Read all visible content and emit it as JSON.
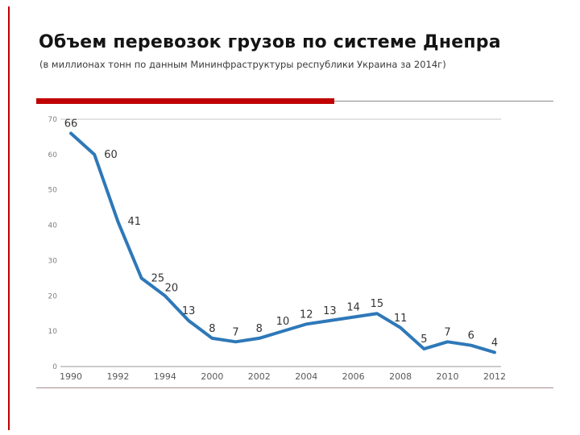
{
  "slide": {
    "title": "Объем перевозок грузов по системе Днепра",
    "subtitle": "(в миллионах тонн по данным Мининфраструктуры республики Украина за 2014г)"
  },
  "colors": {
    "accent": "#c00000",
    "thin_rule": "#8a8a8a",
    "grid": "#c4c4c4",
    "axis": "#9a9a9a",
    "y_tick_text": "#7f7f7f",
    "x_tick_text": "#595959",
    "point_label_text": "#333333"
  },
  "chart_data": {
    "type": "line",
    "title": "",
    "xlabel": "",
    "ylabel": "",
    "legend": "none",
    "grid": "horizontal line at top (70) and baseline (0) only",
    "values": [
      66,
      60,
      41,
      25,
      20,
      13,
      8,
      7,
      8,
      10,
      12,
      13,
      14,
      15,
      11,
      5,
      7,
      6,
      4
    ],
    "point_labels": [
      "66",
      "60",
      "41",
      "25",
      "20",
      "13",
      "8",
      "7",
      "8",
      "10",
      "12",
      "13",
      "14",
      "15",
      "11",
      "5",
      "7",
      "6",
      "4"
    ],
    "x_tick_labels": [
      "1990",
      "1992",
      "1994",
      "2000",
      "2002",
      "2004",
      "2006",
      "2008",
      "2010",
      "2012"
    ],
    "x_tick_indices": [
      0,
      2,
      4,
      6,
      8,
      10,
      12,
      14,
      16,
      18
    ],
    "y_ticks": [
      0,
      10,
      20,
      30,
      40,
      50,
      60,
      70
    ],
    "ylim": [
      0,
      70
    ],
    "line_color": "#2e78b8"
  }
}
